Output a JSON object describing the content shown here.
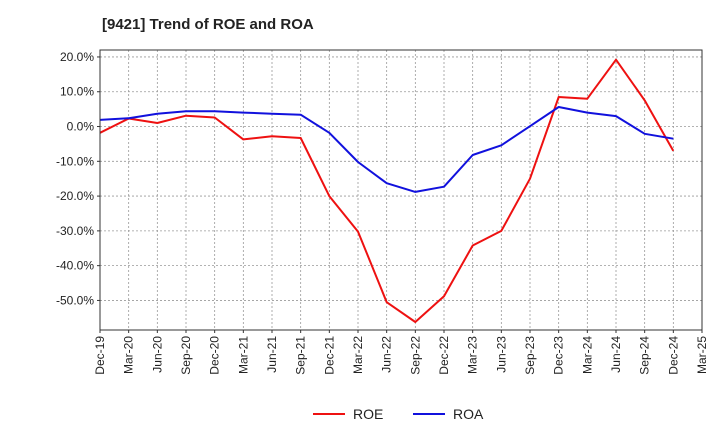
{
  "chart_data": {
    "type": "line",
    "title": "[9421]  Trend of ROE and ROA",
    "x": [
      "Dec-19",
      "Mar-20",
      "Jun-20",
      "Sep-20",
      "Dec-20",
      "Mar-21",
      "Jun-21",
      "Sep-21",
      "Dec-21",
      "Mar-22",
      "Jun-22",
      "Sep-22",
      "Dec-22",
      "Mar-23",
      "Jun-23",
      "Sep-23",
      "Dec-23",
      "Mar-24",
      "Jun-24",
      "Sep-24",
      "Dec-24",
      "Mar-25"
    ],
    "series": [
      {
        "name": "ROE",
        "color": "#ee1111",
        "values": [
          -1.8,
          2.3,
          1.0,
          3.1,
          2.6,
          -3.7,
          -2.8,
          -3.3,
          -20.0,
          -30.2,
          -50.5,
          -56.2,
          -48.8,
          -34.2,
          -30.0,
          -15.0,
          8.5,
          8.0,
          19.2,
          7.5,
          -7.0,
          null
        ]
      },
      {
        "name": "ROA",
        "color": "#1111dd",
        "values": [
          1.9,
          2.4,
          3.7,
          4.4,
          4.4,
          4.0,
          3.7,
          3.4,
          -1.8,
          -10.2,
          -16.3,
          -18.8,
          -17.3,
          -8.2,
          -5.4,
          0.1,
          5.6,
          4.0,
          3.0,
          -2.1,
          -3.5,
          null
        ]
      }
    ],
    "yticks": [
      20,
      10,
      0,
      -10,
      -20,
      -30,
      -40,
      -50
    ],
    "ytick_labels": [
      "20.0%",
      "10.0%",
      "0.0%",
      "-10.0%",
      "-20.0%",
      "-30.0%",
      "-40.0%",
      "-50.0%"
    ],
    "ylim": [
      -58.5,
      22.0
    ],
    "grid": true,
    "legend_position": "bottom-center"
  }
}
